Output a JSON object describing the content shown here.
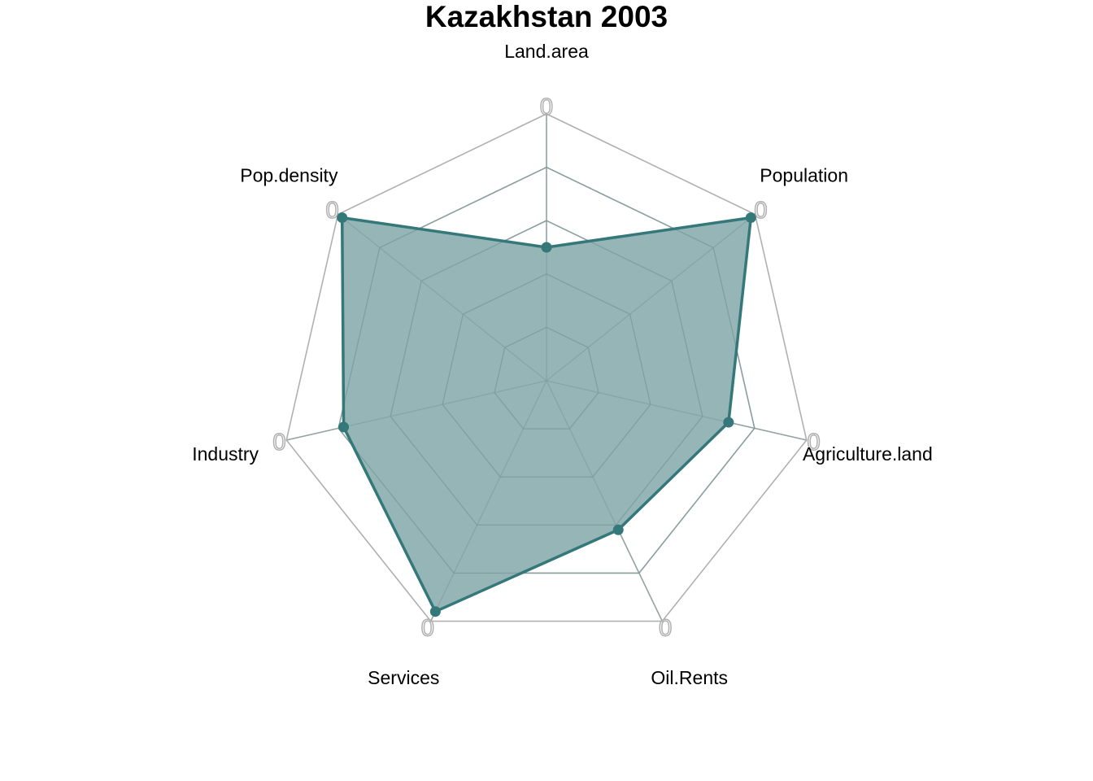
{
  "chart_data": {
    "type": "radar",
    "title": "Kazakhstan 2003",
    "axes": [
      "Land.area",
      "Population",
      "Agriculture.land",
      "Oil.Rents",
      "Services",
      "Industry",
      "Pop.density"
    ],
    "tick_label": "0",
    "grid_levels": 5,
    "range": [
      0,
      1
    ],
    "series": [
      {
        "values": [
          0.5,
          0.98,
          0.7,
          0.62,
          0.96,
          0.78,
          0.98
        ]
      }
    ],
    "colors": {
      "series": "#34787a",
      "series_fill": "#96b5b7",
      "grid": "#b0b0b0",
      "inner_grid": "#7a9a9b"
    },
    "grid": true,
    "legend": "none"
  }
}
